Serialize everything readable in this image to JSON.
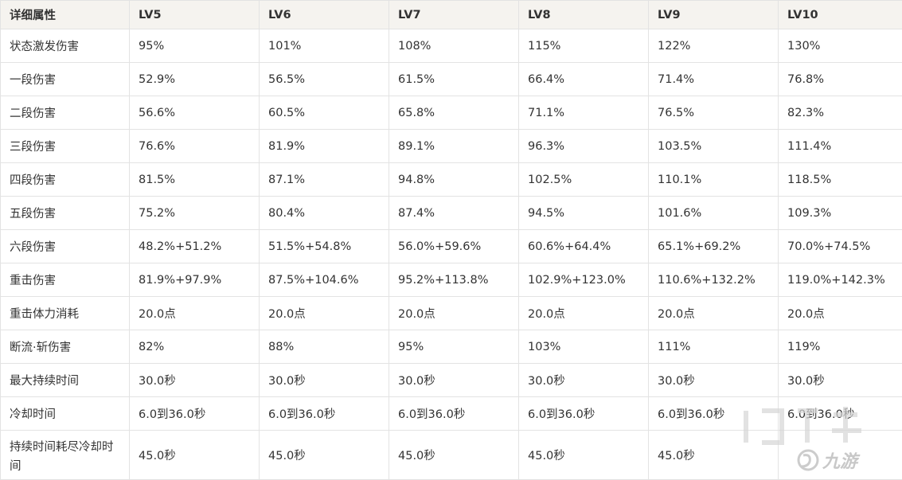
{
  "table": {
    "headers": [
      "详细属性",
      "LV5",
      "LV6",
      "LV7",
      "LV8",
      "LV9",
      "LV10"
    ],
    "rows": [
      {
        "name": "状态激发伤害",
        "values": [
          "95%",
          "101%",
          "108%",
          "115%",
          "122%",
          "130%"
        ]
      },
      {
        "name": "一段伤害",
        "values": [
          "52.9%",
          "56.5%",
          "61.5%",
          "66.4%",
          "71.4%",
          "76.8%"
        ]
      },
      {
        "name": "二段伤害",
        "values": [
          "56.6%",
          "60.5%",
          "65.8%",
          "71.1%",
          "76.5%",
          "82.3%"
        ]
      },
      {
        "name": "三段伤害",
        "values": [
          "76.6%",
          "81.9%",
          "89.1%",
          "96.3%",
          "103.5%",
          "111.4%"
        ]
      },
      {
        "name": "四段伤害",
        "values": [
          "81.5%",
          "87.1%",
          "94.8%",
          "102.5%",
          "110.1%",
          "118.5%"
        ]
      },
      {
        "name": "五段伤害",
        "values": [
          "75.2%",
          "80.4%",
          "87.4%",
          "94.5%",
          "101.6%",
          "109.3%"
        ]
      },
      {
        "name": "六段伤害",
        "values": [
          "48.2%+51.2%",
          "51.5%+54.8%",
          "56.0%+59.6%",
          "60.6%+64.4%",
          "65.1%+69.2%",
          "70.0%+74.5%"
        ]
      },
      {
        "name": "重击伤害",
        "values": [
          "81.9%+97.9%",
          "87.5%+104.6%",
          "95.2%+113.8%",
          "102.9%+123.0%",
          "110.6%+132.2%",
          "119.0%+142.3%"
        ]
      },
      {
        "name": "重击体力消耗",
        "values": [
          "20.0点",
          "20.0点",
          "20.0点",
          "20.0点",
          "20.0点",
          "20.0点"
        ]
      },
      {
        "name": "断流·斩伤害",
        "values": [
          "82%",
          "88%",
          "95%",
          "103%",
          "111%",
          "119%"
        ]
      },
      {
        "name": "最大持续时间",
        "values": [
          "30.0秒",
          "30.0秒",
          "30.0秒",
          "30.0秒",
          "30.0秒",
          "30.0秒"
        ]
      },
      {
        "name": "冷却时间",
        "values": [
          "6.0到36.0秒",
          "6.0到36.0秒",
          "6.0到36.0秒",
          "6.0到36.0秒",
          "6.0到36.0秒",
          "6.0到36.0秒"
        ]
      },
      {
        "name": "持续时间耗尽冷却时间",
        "values": [
          "45.0秒",
          "45.0秒",
          "45.0秒",
          "45.0秒",
          "45.0秒",
          ""
        ]
      }
    ]
  },
  "watermark": {
    "text": "九游",
    "color": "#c8c8c8"
  },
  "colors": {
    "header_bg": "#f5f3ef",
    "border": "#e3e3e3",
    "text": "#333333"
  }
}
